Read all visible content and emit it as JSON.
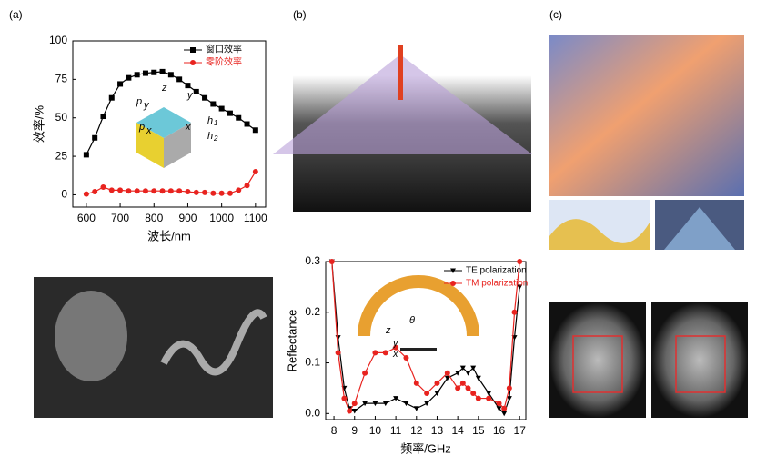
{
  "panel_labels": [
    "(a)",
    "(b)",
    "(c)"
  ],
  "chart_data": [
    {
      "type": "line",
      "x_label": "波长/nm",
      "y_label": "效率/%",
      "x": [
        600,
        625,
        650,
        675,
        700,
        725,
        750,
        775,
        800,
        825,
        850,
        875,
        900,
        925,
        950,
        975,
        1000,
        1025,
        1050,
        1075,
        1100
      ],
      "series": [
        {
          "name": "窗口效率",
          "color": "#000000",
          "marker": "square",
          "values": [
            26,
            37,
            51,
            63,
            72,
            76,
            78,
            79,
            79.5,
            80,
            78,
            75,
            71,
            67,
            63,
            59,
            56,
            53,
            50,
            46,
            42
          ]
        },
        {
          "name": "零阶效率",
          "color": "#e8231f",
          "marker": "circle",
          "values": [
            0.5,
            2,
            5,
            3,
            3,
            2.5,
            2.5,
            2.5,
            2.5,
            2.5,
            2.5,
            2.5,
            2,
            1.5,
            1.5,
            1,
            1,
            1,
            3,
            6,
            15
          ]
        }
      ],
      "xlim": [
        560,
        1130
      ],
      "xticks": [
        600,
        700,
        800,
        900,
        1000,
        1100
      ],
      "ylim": [
        -8,
        100
      ],
      "yticks": [
        0,
        25,
        50,
        75,
        100
      ],
      "legend": "upper right",
      "inset_labels": [
        "z",
        "y",
        "x",
        "p",
        "y",
        "p",
        "x",
        "h",
        "1",
        "h",
        "2"
      ]
    },
    {
      "type": "line",
      "x_label": "频率/GHz",
      "y_label": "Reflectance",
      "x": [
        7.9,
        8.2,
        8.5,
        8.75,
        9,
        9.5,
        10,
        10.5,
        11,
        11.5,
        12,
        12.5,
        13,
        13.5,
        14,
        14.25,
        14.5,
        14.75,
        15,
        15.5,
        16,
        16.25,
        16.5,
        16.75,
        17
      ],
      "series": [
        {
          "name": "TE polarization",
          "color": "#000000",
          "marker": "triangle",
          "values": [
            0.3,
            0.15,
            0.05,
            0.01,
            0.005,
            0.02,
            0.02,
            0.02,
            0.03,
            0.02,
            0.01,
            0.02,
            0.04,
            0.07,
            0.08,
            0.09,
            0.08,
            0.09,
            0.07,
            0.04,
            0.01,
            0.0,
            0.03,
            0.15,
            0.25
          ]
        },
        {
          "name": "TM polarization",
          "color": "#e8231f",
          "marker": "circle",
          "values": [
            0.3,
            0.12,
            0.03,
            0.005,
            0.02,
            0.08,
            0.12,
            0.12,
            0.13,
            0.11,
            0.06,
            0.04,
            0.06,
            0.08,
            0.05,
            0.06,
            0.05,
            0.04,
            0.03,
            0.03,
            0.02,
            0.01,
            0.05,
            0.2,
            0.3
          ]
        }
      ],
      "xlim": [
        7.6,
        17.3
      ],
      "xticks": [
        8,
        9,
        10,
        11,
        12,
        13,
        14,
        15,
        16,
        17
      ],
      "ylim": [
        -0.012,
        0.3
      ],
      "yticks": [
        {
          "value": 0,
          "label": "0.0"
        },
        0.1,
        0.2,
        0.3
      ],
      "legend": "upper right",
      "inset_labels": [
        "z",
        "y",
        "x",
        "θ"
      ]
    }
  ]
}
